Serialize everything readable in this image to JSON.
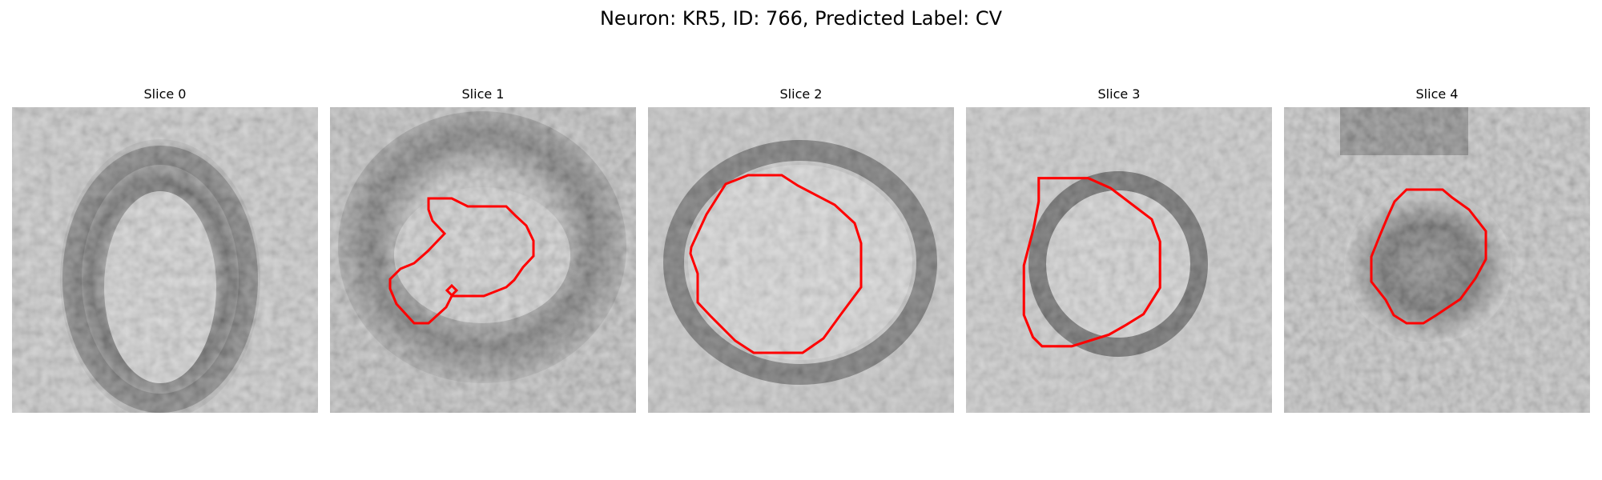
{
  "figure": {
    "title": "Neuron: KR5, ID: 766, Predicted Label: CV"
  },
  "panels": [
    {
      "title": "Slice 0",
      "has_outline": false
    },
    {
      "title": "Slice 1",
      "has_outline": true
    },
    {
      "title": "Slice 2",
      "has_outline": true
    },
    {
      "title": "Slice 3",
      "has_outline": true
    },
    {
      "title": "Slice 4",
      "has_outline": true
    }
  ],
  "colors": {
    "outline": "#ff0000",
    "background": "#ffffff"
  }
}
